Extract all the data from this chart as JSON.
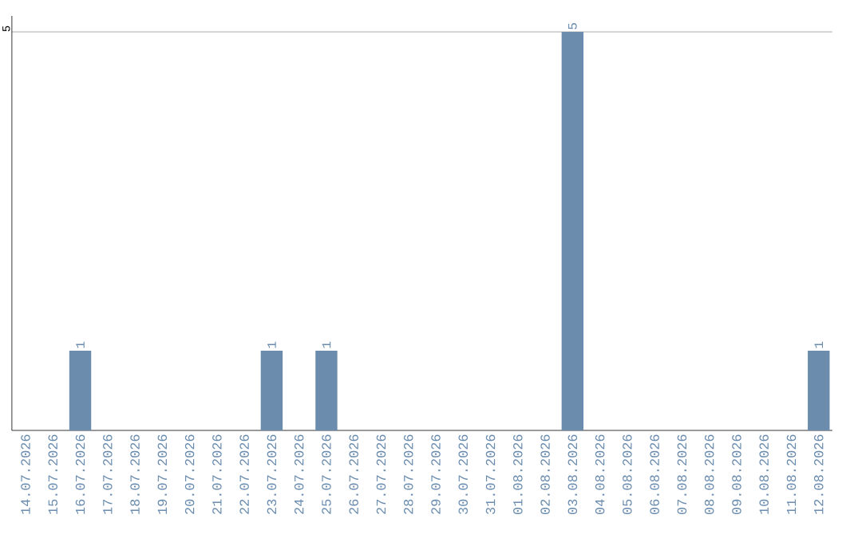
{
  "chart_data": {
    "type": "bar",
    "categories": [
      "14.07.2026",
      "15.07.2026",
      "16.07.2026",
      "17.07.2026",
      "18.07.2026",
      "19.07.2026",
      "20.07.2026",
      "21.07.2026",
      "22.07.2026",
      "23.07.2026",
      "24.07.2026",
      "25.07.2026",
      "26.07.2026",
      "27.07.2026",
      "28.07.2026",
      "29.07.2026",
      "30.07.2026",
      "31.07.2026",
      "01.08.2026",
      "02.08.2026",
      "03.08.2026",
      "04.08.2026",
      "05.08.2026",
      "06.08.2026",
      "07.08.2026",
      "08.08.2026",
      "09.08.2026",
      "10.08.2026",
      "11.08.2026",
      "12.08.2026"
    ],
    "values": [
      0,
      0,
      1,
      0,
      0,
      0,
      0,
      0,
      0,
      1,
      0,
      1,
      0,
      0,
      0,
      0,
      0,
      0,
      0,
      0,
      5,
      0,
      0,
      0,
      0,
      0,
      0,
      0,
      0,
      1
    ],
    "value_labels": [
      null,
      null,
      "1",
      null,
      null,
      null,
      null,
      null,
      null,
      "1",
      null,
      "1",
      null,
      null,
      null,
      null,
      null,
      null,
      null,
      null,
      "5",
      null,
      null,
      null,
      null,
      null,
      null,
      null,
      null,
      "1"
    ],
    "color": "#6b8cad",
    "ylim": [
      0,
      5.2
    ],
    "yticks": [
      5
    ],
    "grid": "y"
  }
}
